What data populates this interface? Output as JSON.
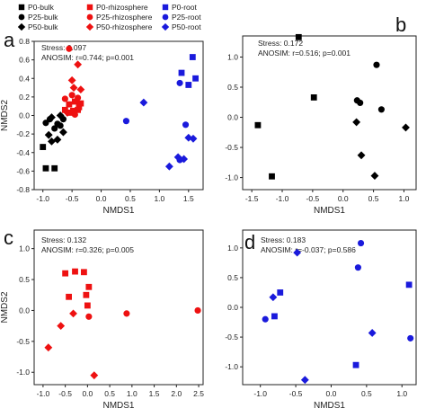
{
  "legend": {
    "columns": [
      [
        {
          "label": "P0-bulk",
          "color": "#000000",
          "marker": "square"
        },
        {
          "label": "P25-bulk",
          "color": "#000000",
          "marker": "circle"
        },
        {
          "label": "P50-bulk",
          "color": "#000000",
          "marker": "diamond"
        }
      ],
      [
        {
          "label": "P0-rhizosphere",
          "color": "#ee1111",
          "marker": "square"
        },
        {
          "label": "P25-rhizosphere",
          "color": "#ee1111",
          "marker": "circle"
        },
        {
          "label": "P50-rhizosphere",
          "color": "#ee1111",
          "marker": "diamond"
        }
      ],
      [
        {
          "label": "P0-root",
          "color": "#1a1adc",
          "marker": "square"
        },
        {
          "label": "P25-root",
          "color": "#1a1adc",
          "marker": "circle"
        },
        {
          "label": "P50-root",
          "color": "#1a1adc",
          "marker": "diamond"
        }
      ]
    ]
  },
  "chart_data": [
    {
      "type": "scatter",
      "panel": "a",
      "xlabel": "NMDS1",
      "ylabel": "NMDS2",
      "xlim": [
        -1.15,
        1.75
      ],
      "ylim": [
        -0.8,
        0.8
      ],
      "xticks": [
        "-1.0",
        "-0.5",
        "0.0",
        "0.5",
        "1.0",
        "1.5"
      ],
      "xtick_values": [
        -1.0,
        -0.5,
        0.0,
        0.5,
        1.0,
        1.5
      ],
      "yticks": [
        "-0.8",
        "-0.6",
        "-0.4",
        "-0.2",
        "0.0",
        "0.2",
        "0.4",
        "0.6",
        "0.8"
      ],
      "ytick_values": [
        -0.8,
        -0.6,
        -0.4,
        -0.2,
        0.0,
        0.2,
        0.4,
        0.6,
        0.8
      ],
      "annotations": [
        "Stress: 0.097",
        "ANOSIM: r=0.744; p=0.001"
      ],
      "series": [
        {
          "color": "#000000",
          "marker": "square",
          "points": [
            [
              -1.0,
              -0.34
            ],
            [
              -0.95,
              -0.57
            ],
            [
              -0.8,
              -0.57
            ]
          ]
        },
        {
          "color": "#000000",
          "marker": "circle",
          "points": [
            [
              -0.95,
              -0.08
            ],
            [
              -0.88,
              -0.04
            ],
            [
              -0.8,
              -0.14
            ],
            [
              -0.7,
              -0.11
            ],
            [
              -0.65,
              -0.04
            ],
            [
              -0.75,
              -0.09
            ]
          ]
        },
        {
          "color": "#000000",
          "marker": "diamond",
          "points": [
            [
              -0.9,
              -0.21
            ],
            [
              -0.85,
              -0.28
            ],
            [
              -0.75,
              -0.26
            ],
            [
              -0.85,
              -0.02
            ],
            [
              -0.65,
              -0.18
            ],
            [
              -0.7,
              0.0
            ]
          ]
        },
        {
          "color": "#ee1111",
          "marker": "square",
          "points": [
            [
              -0.62,
              0.06
            ],
            [
              -0.55,
              0.03
            ],
            [
              -0.48,
              0.05
            ],
            [
              -0.4,
              0.06
            ],
            [
              -0.55,
              0.12
            ],
            [
              -0.45,
              0.15
            ],
            [
              -0.38,
              0.09
            ],
            [
              -0.35,
              0.13
            ]
          ]
        },
        {
          "color": "#ee1111",
          "marker": "circle",
          "points": [
            [
              -0.55,
              0.72
            ],
            [
              -0.62,
              0.18
            ],
            [
              -0.5,
              0.22
            ],
            [
              -0.4,
              0.19
            ],
            [
              -0.45,
              0.01
            ]
          ]
        },
        {
          "color": "#ee1111",
          "marker": "diamond",
          "points": [
            [
              -0.4,
              0.55
            ],
            [
              -0.5,
              0.38
            ],
            [
              -0.35,
              0.28
            ],
            [
              -0.58,
              0.03
            ],
            [
              -0.47,
              0.3
            ]
          ]
        },
        {
          "color": "#1a1adc",
          "marker": "square",
          "points": [
            [
              1.57,
              0.63
            ],
            [
              1.38,
              0.46
            ],
            [
              1.62,
              0.4
            ],
            [
              1.5,
              0.33
            ]
          ]
        },
        {
          "color": "#1a1adc",
          "marker": "circle",
          "points": [
            [
              0.43,
              -0.06
            ],
            [
              1.35,
              0.35
            ],
            [
              1.45,
              -0.1
            ],
            [
              1.35,
              -0.48
            ]
          ]
        },
        {
          "color": "#1a1adc",
          "marker": "diamond",
          "points": [
            [
              0.73,
              0.14
            ],
            [
              1.17,
              -0.55
            ],
            [
              1.32,
              -0.45
            ],
            [
              1.42,
              -0.47
            ],
            [
              1.5,
              -0.24
            ],
            [
              1.58,
              -0.25
            ]
          ]
        }
      ]
    },
    {
      "type": "scatter",
      "panel": "b",
      "xlabel": "NMDS1",
      "ylabel": "",
      "xlim": [
        -1.65,
        1.2
      ],
      "ylim": [
        -1.2,
        1.35
      ],
      "xticks": [
        "-1.5",
        "-1.0",
        "-0.5",
        "0.0",
        "0.5",
        "1.0"
      ],
      "xtick_values": [
        -1.5,
        -1.0,
        -0.5,
        0.0,
        0.5,
        1.0
      ],
      "yticks": [
        "-1.0",
        "-0.5",
        "0.0",
        "0.5",
        "1.0"
      ],
      "ytick_values": [
        -1.0,
        -0.5,
        0.0,
        0.5,
        1.0
      ],
      "annotations": [
        "Stress: 0.172",
        "ANOSIM: r=0.516; p=0.001"
      ],
      "series": [
        {
          "color": "#000000",
          "marker": "square",
          "points": [
            [
              -0.73,
              1.33
            ],
            [
              -1.4,
              -0.13
            ],
            [
              -0.48,
              0.33
            ],
            [
              -1.17,
              -0.98
            ]
          ]
        },
        {
          "color": "#000000",
          "marker": "circle",
          "points": [
            [
              0.55,
              0.87
            ],
            [
              0.23,
              0.28
            ],
            [
              0.63,
              0.13
            ],
            [
              0.28,
              0.24
            ]
          ]
        },
        {
          "color": "#000000",
          "marker": "diamond",
          "points": [
            [
              0.22,
              -0.08
            ],
            [
              0.3,
              -0.63
            ],
            [
              0.52,
              -0.97
            ],
            [
              1.03,
              -0.17
            ]
          ]
        }
      ]
    },
    {
      "type": "scatter",
      "panel": "c",
      "xlabel": "NMDS1",
      "ylabel": "NMDS2",
      "xlim": [
        -1.2,
        2.6
      ],
      "ylim": [
        -1.2,
        1.3
      ],
      "xticks": [
        "-1.0",
        "-0.5",
        "0.0",
        "0.5",
        "1.0",
        "1.5",
        "2.0",
        "2.5"
      ],
      "xtick_values": [
        -1.0,
        -0.5,
        0.0,
        0.5,
        1.0,
        1.5,
        2.0,
        2.5
      ],
      "yticks": [
        "-1.0",
        "-0.5",
        "0.0",
        "0.5",
        "1.0"
      ],
      "ytick_values": [
        -1.0,
        -0.5,
        0.0,
        0.5,
        1.0
      ],
      "annotations": [
        "Stress: 0.132",
        "ANOSIM: r=0.326; p=0.005"
      ],
      "series": [
        {
          "color": "#ee1111",
          "marker": "square",
          "points": [
            [
              -0.5,
              0.6
            ],
            [
              -0.28,
              0.63
            ],
            [
              -0.08,
              0.62
            ],
            [
              0.03,
              0.38
            ],
            [
              -0.03,
              0.25
            ],
            [
              -0.42,
              0.22
            ],
            [
              0.0,
              0.08
            ]
          ]
        },
        {
          "color": "#ee1111",
          "marker": "circle",
          "points": [
            [
              0.03,
              -0.1
            ],
            [
              0.88,
              -0.05
            ],
            [
              2.48,
              0.0
            ]
          ]
        },
        {
          "color": "#ee1111",
          "marker": "diamond",
          "points": [
            [
              -0.6,
              -0.25
            ],
            [
              -0.32,
              -0.05
            ],
            [
              -0.88,
              -0.6
            ],
            [
              0.15,
              -1.05
            ]
          ]
        }
      ]
    },
    {
      "type": "scatter",
      "panel": "d",
      "xlabel": "NMDS1",
      "ylabel": "",
      "xlim": [
        -1.25,
        1.2
      ],
      "ylim": [
        -1.3,
        1.3
      ],
      "xticks": [
        "-1.0",
        "-0.5",
        "0.0",
        "0.5",
        "1.0"
      ],
      "xtick_values": [
        -1.0,
        -0.5,
        0.0,
        0.5,
        1.0
      ],
      "yticks": [
        "-1.0",
        "-0.5",
        "0.0",
        "0.5",
        "1.0"
      ],
      "ytick_values": [
        -1.0,
        -0.5,
        0.0,
        0.5,
        1.0
      ],
      "annotations": [
        "Stress: 0.183",
        "ANOSIM: r=-0.037; p=0.586"
      ],
      "series": [
        {
          "color": "#1a1adc",
          "marker": "square",
          "points": [
            [
              -0.72,
              0.25
            ],
            [
              -0.8,
              -0.15
            ],
            [
              0.35,
              -0.97
            ],
            [
              1.1,
              0.38
            ]
          ]
        },
        {
          "color": "#1a1adc",
          "marker": "circle",
          "points": [
            [
              0.42,
              1.08
            ],
            [
              -0.93,
              -0.2
            ],
            [
              0.38,
              0.67
            ],
            [
              1.12,
              -0.52
            ]
          ]
        },
        {
          "color": "#1a1adc",
          "marker": "diamond",
          "points": [
            [
              -0.48,
              0.92
            ],
            [
              -0.82,
              0.17
            ],
            [
              0.58,
              -0.43
            ],
            [
              -0.37,
              -1.22
            ]
          ]
        }
      ]
    }
  ]
}
